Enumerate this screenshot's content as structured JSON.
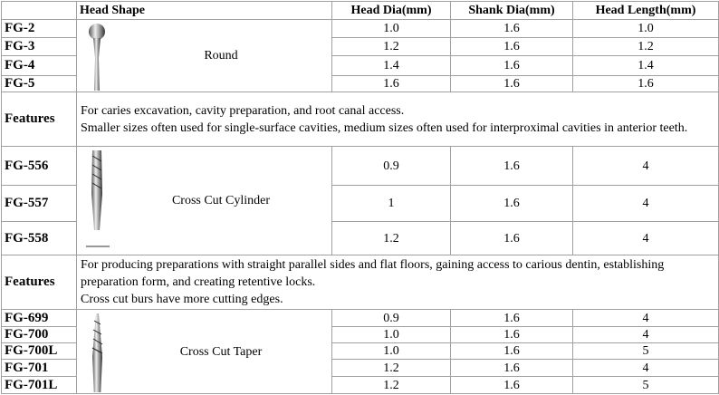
{
  "table": {
    "header": [
      "Head Shape",
      "Head Dia(mm)",
      "Shank Dia(mm)",
      "Head Length(mm)"
    ],
    "groups": [
      {
        "shape": "Round",
        "rows": [
          [
            "FG-2",
            "1.0",
            "1.6",
            "1.0"
          ],
          [
            "FG-3",
            "1.2",
            "1.6",
            "1.2"
          ],
          [
            "FG-4",
            "1.4",
            "1.6",
            "1.4"
          ],
          [
            "FG-5",
            "1.6",
            "1.6",
            "1.6"
          ]
        ],
        "features_label": "Features",
        "features": [
          "For caries excavation, cavity preparation, and root canal access.",
          "Smaller sizes often used for single-surface cavities, medium sizes often used for interproximal cavities in anterior teeth."
        ]
      },
      {
        "shape": "Cross Cut Cylinder",
        "rows": [
          [
            "FG-556",
            "0.9",
            "1.6",
            "4"
          ],
          [
            "FG-557",
            "1",
            "1.6",
            "4"
          ],
          [
            "FG-558",
            "1.2",
            "1.6",
            "4"
          ]
        ],
        "features_label": "Features",
        "features": [
          "For producing preparations with straight parallel sides and flat floors, gaining access to carious dentin, establishing preparation form, and creating retentive locks.",
          "Cross cut burs have more cutting edges."
        ]
      },
      {
        "shape": "Cross Cut Taper",
        "rows": [
          [
            "FG-699",
            "0.9",
            "1.6",
            "4"
          ],
          [
            "FG-700",
            "1.0",
            "1.6",
            "4"
          ],
          [
            "FG-700L",
            "1.0",
            "1.6",
            "5"
          ],
          [
            "FG-701",
            "1.2",
            "1.6",
            "4"
          ],
          [
            "FG-701L",
            "1.2",
            "1.6",
            "5"
          ]
        ]
      }
    ]
  }
}
